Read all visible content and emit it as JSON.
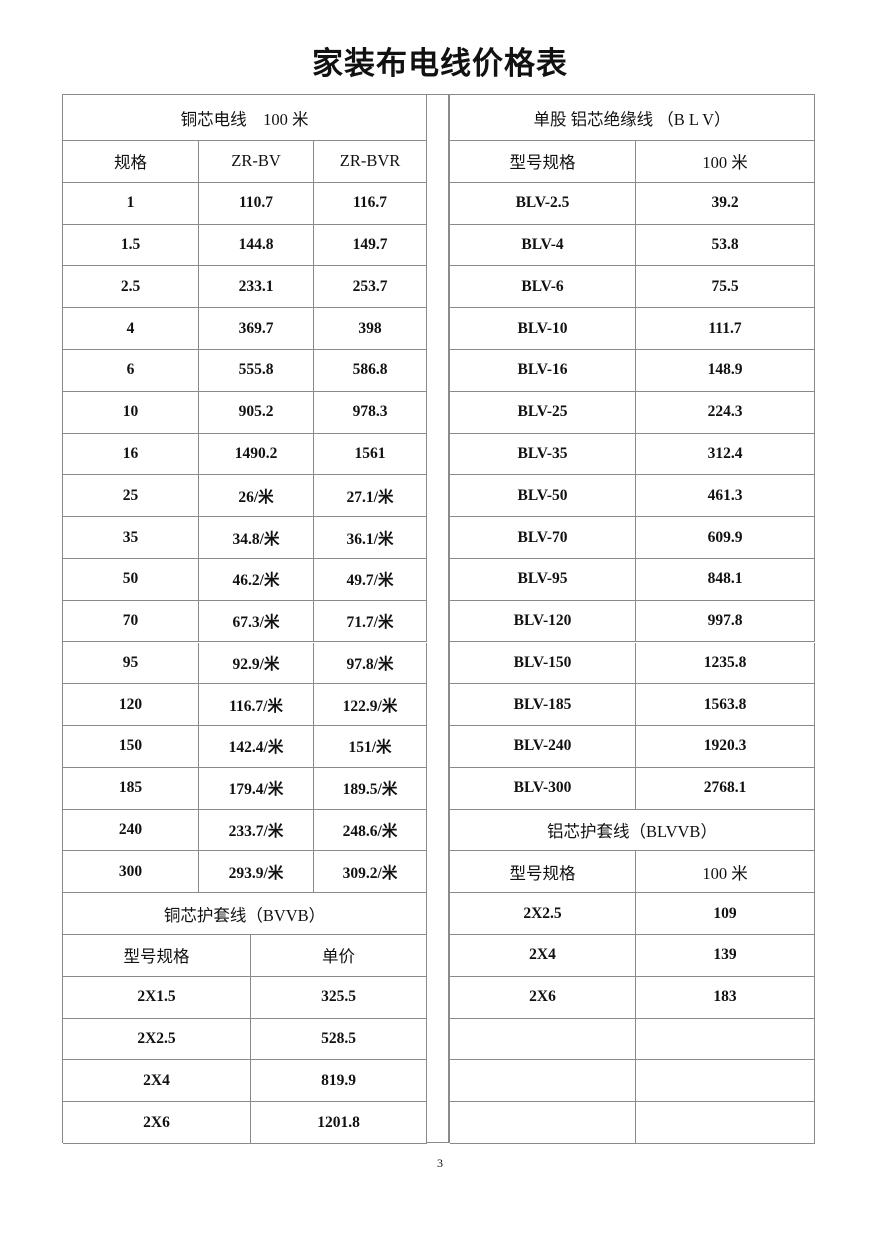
{
  "title": "家装布电线价格表",
  "left": {
    "title": "铜芯电线　100 米",
    "headers": [
      "规格",
      "ZR-BV",
      "ZR-BVR"
    ],
    "rows": [
      [
        "1",
        "110.7",
        "116.7"
      ],
      [
        "1.5",
        "144.8",
        "149.7"
      ],
      [
        "2.5",
        "233.1",
        "253.7"
      ],
      [
        "4",
        "369.7",
        "398"
      ],
      [
        "6",
        "555.8",
        "586.8"
      ],
      [
        "10",
        "905.2",
        "978.3"
      ],
      [
        "16",
        "1490.2",
        "1561"
      ],
      [
        "25",
        "26/米",
        "27.1/米"
      ],
      [
        "35",
        "34.8/米",
        "36.1/米"
      ],
      [
        "50",
        "46.2/米",
        "49.7/米"
      ],
      [
        "70",
        "67.3/米",
        "71.7/米"
      ],
      [
        "95",
        "92.9/米",
        "97.8/米"
      ],
      [
        "120",
        "116.7/米",
        "122.9/米"
      ],
      [
        "150",
        "142.4/米",
        "151/米"
      ],
      [
        "185",
        "179.4/米",
        "189.5/米"
      ],
      [
        "240",
        "233.7/米",
        "248.6/米"
      ],
      [
        "300",
        "293.9/米",
        "309.2/米"
      ]
    ],
    "sub_title": "铜芯护套线（BVVB）",
    "sub_headers": [
      "型号规格",
      "单价"
    ],
    "sub_rows": [
      [
        "2X1.5",
        "325.5"
      ],
      [
        "2X2.5",
        "528.5"
      ],
      [
        "2X4",
        "819.9"
      ],
      [
        "2X6",
        "1201.8"
      ]
    ]
  },
  "right": {
    "title": "单股 铝芯绝缘线 （B L V）",
    "headers": [
      "型号规格",
      "100 米"
    ],
    "rows": [
      [
        "BLV-2.5",
        "39.2"
      ],
      [
        "BLV-4",
        "53.8"
      ],
      [
        "BLV-6",
        "75.5"
      ],
      [
        "BLV-10",
        "111.7"
      ],
      [
        "BLV-16",
        "148.9"
      ],
      [
        "BLV-25",
        "224.3"
      ],
      [
        "BLV-35",
        "312.4"
      ],
      [
        "BLV-50",
        "461.3"
      ],
      [
        "BLV-70",
        "609.9"
      ],
      [
        "BLV-95",
        "848.1"
      ],
      [
        "BLV-120",
        "997.8"
      ],
      [
        "BLV-150",
        "1235.8"
      ],
      [
        "BLV-185",
        "1563.8"
      ],
      [
        "BLV-240",
        "1920.3"
      ],
      [
        "BLV-300",
        "2768.1"
      ]
    ],
    "sub_title": "铝芯护套线（BLVVB）",
    "sub_headers": [
      "型号规格",
      "100 米"
    ],
    "sub_rows": [
      [
        "2X2.5",
        "109"
      ],
      [
        "2X4",
        "139"
      ],
      [
        "2X6",
        "183"
      ]
    ]
  },
  "page_number": "3"
}
